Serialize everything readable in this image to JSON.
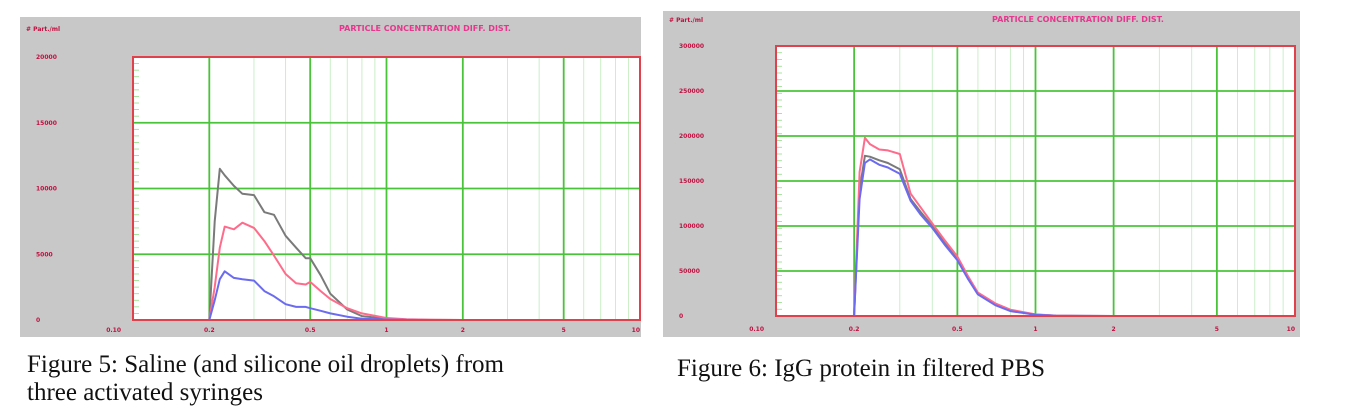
{
  "colors": {
    "panel_bg": "#c8c8c8",
    "plot_bg": "#ffffff",
    "grid": "#49c43a",
    "frame": "#e0424b",
    "title": "#e8358d",
    "tick_text": "#c01040",
    "series_gray": "#7a7a7a",
    "series_pink": "#ff6b8b",
    "series_blue": "#6b6bf0"
  },
  "figures": [
    {
      "caption_lines": [
        "Figure 5: Saline (and silicone oil droplets) from",
        "three activated syringes"
      ]
    },
    {
      "caption_lines": [
        "Figure 6: IgG protein in filtered PBS"
      ]
    }
  ],
  "chart_data": [
    {
      "type": "line",
      "title": "PARTICLE CONCENTRATION DIFF. DIST.",
      "ylabel": "# Part./ml",
      "xscale": "log",
      "xlim": [
        0.1,
        10
      ],
      "ylim": [
        0,
        20000
      ],
      "x_ticks": [
        "0.10",
        "0.2",
        "0.5",
        "1",
        "2",
        "5",
        "10"
      ],
      "x_tick_values": [
        0.1,
        0.2,
        0.5,
        1,
        2,
        5,
        10
      ],
      "y_ticks": [
        "20000",
        "15000",
        "10000",
        "5000",
        "0"
      ],
      "y_tick_values": [
        20000,
        15000,
        10000,
        5000,
        0
      ],
      "grid": true,
      "series": [
        {
          "color": "#7a7a7a",
          "x": [
            0.2,
            0.21,
            0.22,
            0.23,
            0.25,
            0.27,
            0.3,
            0.33,
            0.36,
            0.4,
            0.44,
            0.48,
            0.5,
            0.55,
            0.6,
            0.7,
            0.8,
            1.0,
            1.2,
            1.5,
            2.0
          ],
          "y": [
            0,
            7500,
            11500,
            11000,
            10200,
            9600,
            9500,
            8200,
            8000,
            6400,
            5500,
            4700,
            4700,
            3400,
            2000,
            800,
            300,
            100,
            30,
            10,
            0
          ]
        },
        {
          "color": "#ff6b8b",
          "x": [
            0.2,
            0.21,
            0.22,
            0.23,
            0.25,
            0.27,
            0.3,
            0.33,
            0.36,
            0.4,
            0.44,
            0.48,
            0.5,
            0.55,
            0.6,
            0.7,
            0.8,
            1.0,
            1.2,
            1.5,
            2.0
          ],
          "y": [
            0,
            2500,
            5500,
            7100,
            6900,
            7400,
            7000,
            6000,
            4900,
            3500,
            2800,
            2700,
            2900,
            2200,
            1600,
            900,
            500,
            150,
            50,
            15,
            0
          ]
        },
        {
          "color": "#6b6bf0",
          "x": [
            0.2,
            0.21,
            0.22,
            0.23,
            0.25,
            0.27,
            0.3,
            0.33,
            0.36,
            0.4,
            0.44,
            0.48,
            0.5,
            0.55,
            0.6,
            0.7,
            0.8,
            1.0,
            1.2,
            1.5,
            2.0
          ],
          "y": [
            0,
            1500,
            3100,
            3700,
            3200,
            3100,
            3000,
            2200,
            1800,
            1200,
            1000,
            1000,
            900,
            700,
            500,
            250,
            100,
            30,
            10,
            0,
            0
          ]
        }
      ]
    },
    {
      "type": "line",
      "title": "PARTICLE CONCENTRATION DIFF. DIST.",
      "ylabel": "# Part./ml",
      "xscale": "log",
      "xlim": [
        0.1,
        10
      ],
      "ylim": [
        0,
        300000
      ],
      "x_ticks": [
        "0.10",
        "0.2",
        "0.5",
        "1",
        "2",
        "5",
        "10"
      ],
      "x_tick_values": [
        0.1,
        0.2,
        0.5,
        1,
        2,
        5,
        10
      ],
      "y_ticks": [
        "300000",
        "250000",
        "200000",
        "150000",
        "100000",
        "50000",
        "0"
      ],
      "y_tick_values": [
        300000,
        250000,
        200000,
        150000,
        100000,
        50000,
        0
      ],
      "grid": true,
      "series": [
        {
          "color": "#7a7a7a",
          "x": [
            0.2,
            0.21,
            0.22,
            0.23,
            0.25,
            0.27,
            0.3,
            0.33,
            0.36,
            0.4,
            0.45,
            0.5,
            0.55,
            0.6,
            0.7,
            0.8,
            1.0,
            1.2,
            1.5,
            2.0
          ],
          "y": [
            0,
            140000,
            178000,
            177000,
            173000,
            170000,
            163000,
            130000,
            116000,
            100000,
            80000,
            63000,
            42000,
            25000,
            13000,
            6000,
            1500,
            400,
            100,
            0
          ]
        },
        {
          "color": "#ff6b8b",
          "x": [
            0.2,
            0.21,
            0.22,
            0.23,
            0.25,
            0.27,
            0.3,
            0.33,
            0.36,
            0.4,
            0.45,
            0.5,
            0.55,
            0.6,
            0.7,
            0.8,
            1.0,
            1.2,
            1.5,
            2.0
          ],
          "y": [
            0,
            160000,
            198000,
            191000,
            185000,
            184000,
            180000,
            136000,
            121000,
            103000,
            83000,
            66000,
            44000,
            26000,
            14000,
            7000,
            1800,
            500,
            100,
            0
          ]
        },
        {
          "color": "#6b6bf0",
          "x": [
            0.2,
            0.21,
            0.22,
            0.23,
            0.25,
            0.27,
            0.3,
            0.33,
            0.36,
            0.4,
            0.45,
            0.5,
            0.55,
            0.6,
            0.7,
            0.8,
            1.0,
            1.2,
            1.5,
            2.0
          ],
          "y": [
            0,
            130000,
            170000,
            174000,
            168000,
            165000,
            158000,
            128000,
            113000,
            98000,
            78000,
            62000,
            41000,
            24000,
            12000,
            5500,
            1300,
            300,
            80,
            0
          ]
        }
      ]
    }
  ]
}
